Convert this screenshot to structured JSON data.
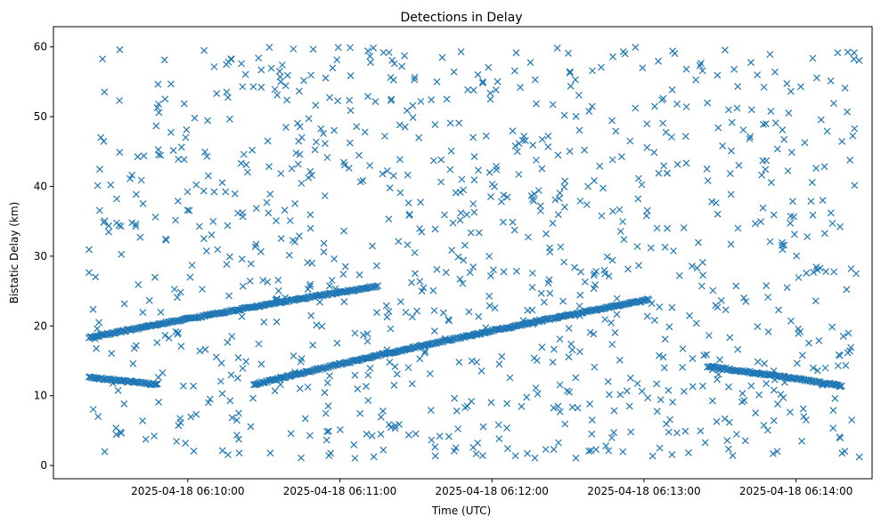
{
  "chart_data": {
    "type": "scatter",
    "title": "Detections in Delay",
    "xlabel": "Time (UTC)",
    "ylabel": "Bistatic Delay (km)",
    "marker": "x",
    "color": "#1f77b4",
    "grid": false,
    "legend": "none",
    "x_ticks": [
      "2025-04-18 06:10:00",
      "2025-04-18 06:11:00",
      "2025-04-18 06:12:00",
      "2025-04-18 06:13:00",
      "2025-04-18 06:14:00"
    ],
    "y_ticks": [
      0,
      10,
      20,
      30,
      40,
      50,
      60
    ],
    "xlim": [
      "2025-04-18 06:09:07",
      "2025-04-18 06:14:30"
    ],
    "ylim": [
      -1.9,
      62.9
    ],
    "tracks": [
      {
        "from": "2025-04-18 06:09:21",
        "to": "2025-04-18 06:11:15",
        "y_start": 18.3,
        "y_end": 25.7
      },
      {
        "from": "2025-04-18 06:09:21",
        "to": "2025-04-18 06:09:48",
        "y_start": 12.6,
        "y_end": 11.6
      },
      {
        "from": "2025-04-18 06:10:26",
        "to": "2025-04-18 06:13:02",
        "y_start": 11.6,
        "y_end": 23.8
      },
      {
        "from": "2025-04-18 06:13:25",
        "to": "2025-04-18 06:14:18",
        "y_start": 14.2,
        "y_end": 11.4
      }
    ],
    "clutter": {
      "from": "2025-04-18 06:09:21",
      "to": "2025-04-18 06:14:25",
      "y_min": 1,
      "y_max": 60,
      "count": 1000
    }
  }
}
